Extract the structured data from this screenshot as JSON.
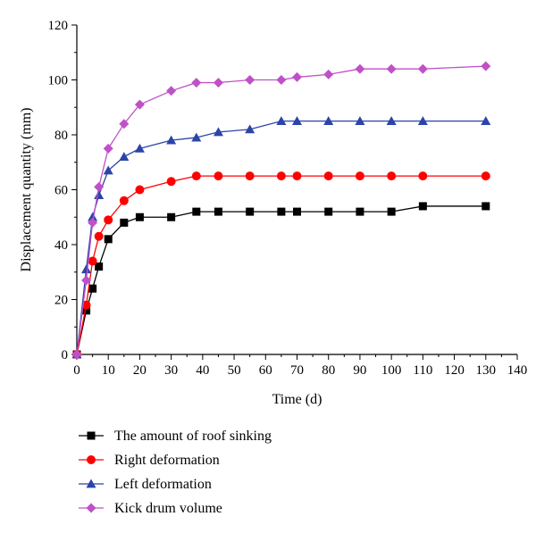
{
  "chart_data": {
    "type": "line",
    "title": "",
    "xlabel": "Time (d)",
    "ylabel": "Displacement quantity (mm)",
    "xlim": [
      0,
      140
    ],
    "ylim": [
      0,
      120
    ],
    "xticks": [
      0,
      10,
      20,
      30,
      40,
      50,
      60,
      70,
      80,
      90,
      100,
      110,
      120,
      130,
      140
    ],
    "yticks": [
      0,
      20,
      40,
      60,
      80,
      100,
      120
    ],
    "grid": false,
    "legend_position": "bottom-left, below plot",
    "series": [
      {
        "name": "The amount of roof sinking",
        "color": "#000000",
        "marker": "square",
        "x": [
          0,
          3,
          5,
          7,
          10,
          15,
          20,
          30,
          38,
          45,
          55,
          65,
          70,
          80,
          90,
          100,
          110,
          130
        ],
        "y": [
          0,
          16,
          24,
          32,
          42,
          48,
          50,
          50,
          52,
          52,
          52,
          52,
          52,
          52,
          52,
          52,
          54,
          54
        ]
      },
      {
        "name": "Right deformation",
        "color": "#ff0000",
        "marker": "circle",
        "x": [
          0,
          3,
          5,
          7,
          10,
          15,
          20,
          30,
          38,
          45,
          55,
          65,
          70,
          80,
          90,
          100,
          110,
          130
        ],
        "y": [
          0,
          18,
          34,
          43,
          49,
          56,
          60,
          63,
          65,
          65,
          65,
          65,
          65,
          65,
          65,
          65,
          65,
          65
        ]
      },
      {
        "name": "Left deformation",
        "color": "#2b44a8",
        "marker": "triangle",
        "x": [
          0,
          3,
          5,
          7,
          10,
          15,
          20,
          30,
          38,
          45,
          55,
          65,
          70,
          80,
          90,
          100,
          110,
          130
        ],
        "y": [
          0,
          31,
          50,
          58,
          67,
          72,
          75,
          78,
          79,
          81,
          82,
          85,
          85,
          85,
          85,
          85,
          85,
          85
        ]
      },
      {
        "name": "Kick drum volume",
        "color": "#c050c8",
        "marker": "diamond",
        "x": [
          0,
          3,
          5,
          7,
          10,
          15,
          20,
          30,
          38,
          45,
          55,
          65,
          70,
          80,
          90,
          100,
          110,
          130
        ],
        "y": [
          0,
          27,
          48,
          61,
          75,
          84,
          91,
          96,
          99,
          99,
          100,
          100,
          101,
          102,
          104,
          104,
          104,
          105
        ]
      }
    ]
  }
}
